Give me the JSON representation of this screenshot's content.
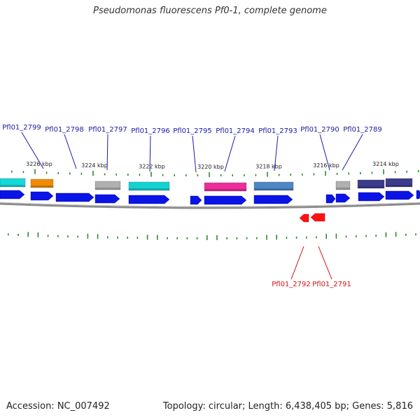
{
  "title": "Pseudomonas fluorescens Pf0-1, complete genome",
  "footer": {
    "accession": "Accession: NC_007492",
    "topology": "Topology: circular; Length: 6,438,405 bp; Genes: 5,816"
  },
  "colors": {
    "forward_gene": "#0a14e6",
    "reverse_gene": "#ff1111",
    "label_forward": "#1a1aa8",
    "label_reverse": "#d41010",
    "tick": "#2b8a2b",
    "backbone": "#8c8c8c"
  },
  "ticks": {
    "labels": [
      "3226 kbp",
      "3224 kbp",
      "3222 kbp",
      "3220 kbp",
      "3218 kbp",
      "3216 kbp",
      "3214 kbp"
    ]
  },
  "forward_labels": [
    "Pfl01_2799",
    "Pfl01_2798",
    "Pfl01_2797",
    "Pfl01_2796",
    "Pfl01_2795",
    "Pfl01_2794",
    "Pfl01_2793",
    "Pfl01_2790",
    "Pfl01_2789"
  ],
  "reverse_labels": [
    "Pfl01_2792",
    "Pfl01_2791"
  ],
  "cog_colors": [
    "#14d9d9",
    "#f08c00",
    "#b0b0b0",
    "#14d2d2",
    "#ee2d9a",
    "#4f86c6",
    "#b0b0b0",
    "#3c3c8c",
    "#3c3c8c"
  ],
  "gene_strands": [
    "forward",
    "forward",
    "forward",
    "forward",
    "forward",
    "forward",
    "forward",
    "forward",
    "forward",
    "forward",
    "forward",
    "forward",
    "reverse",
    "reverse"
  ]
}
